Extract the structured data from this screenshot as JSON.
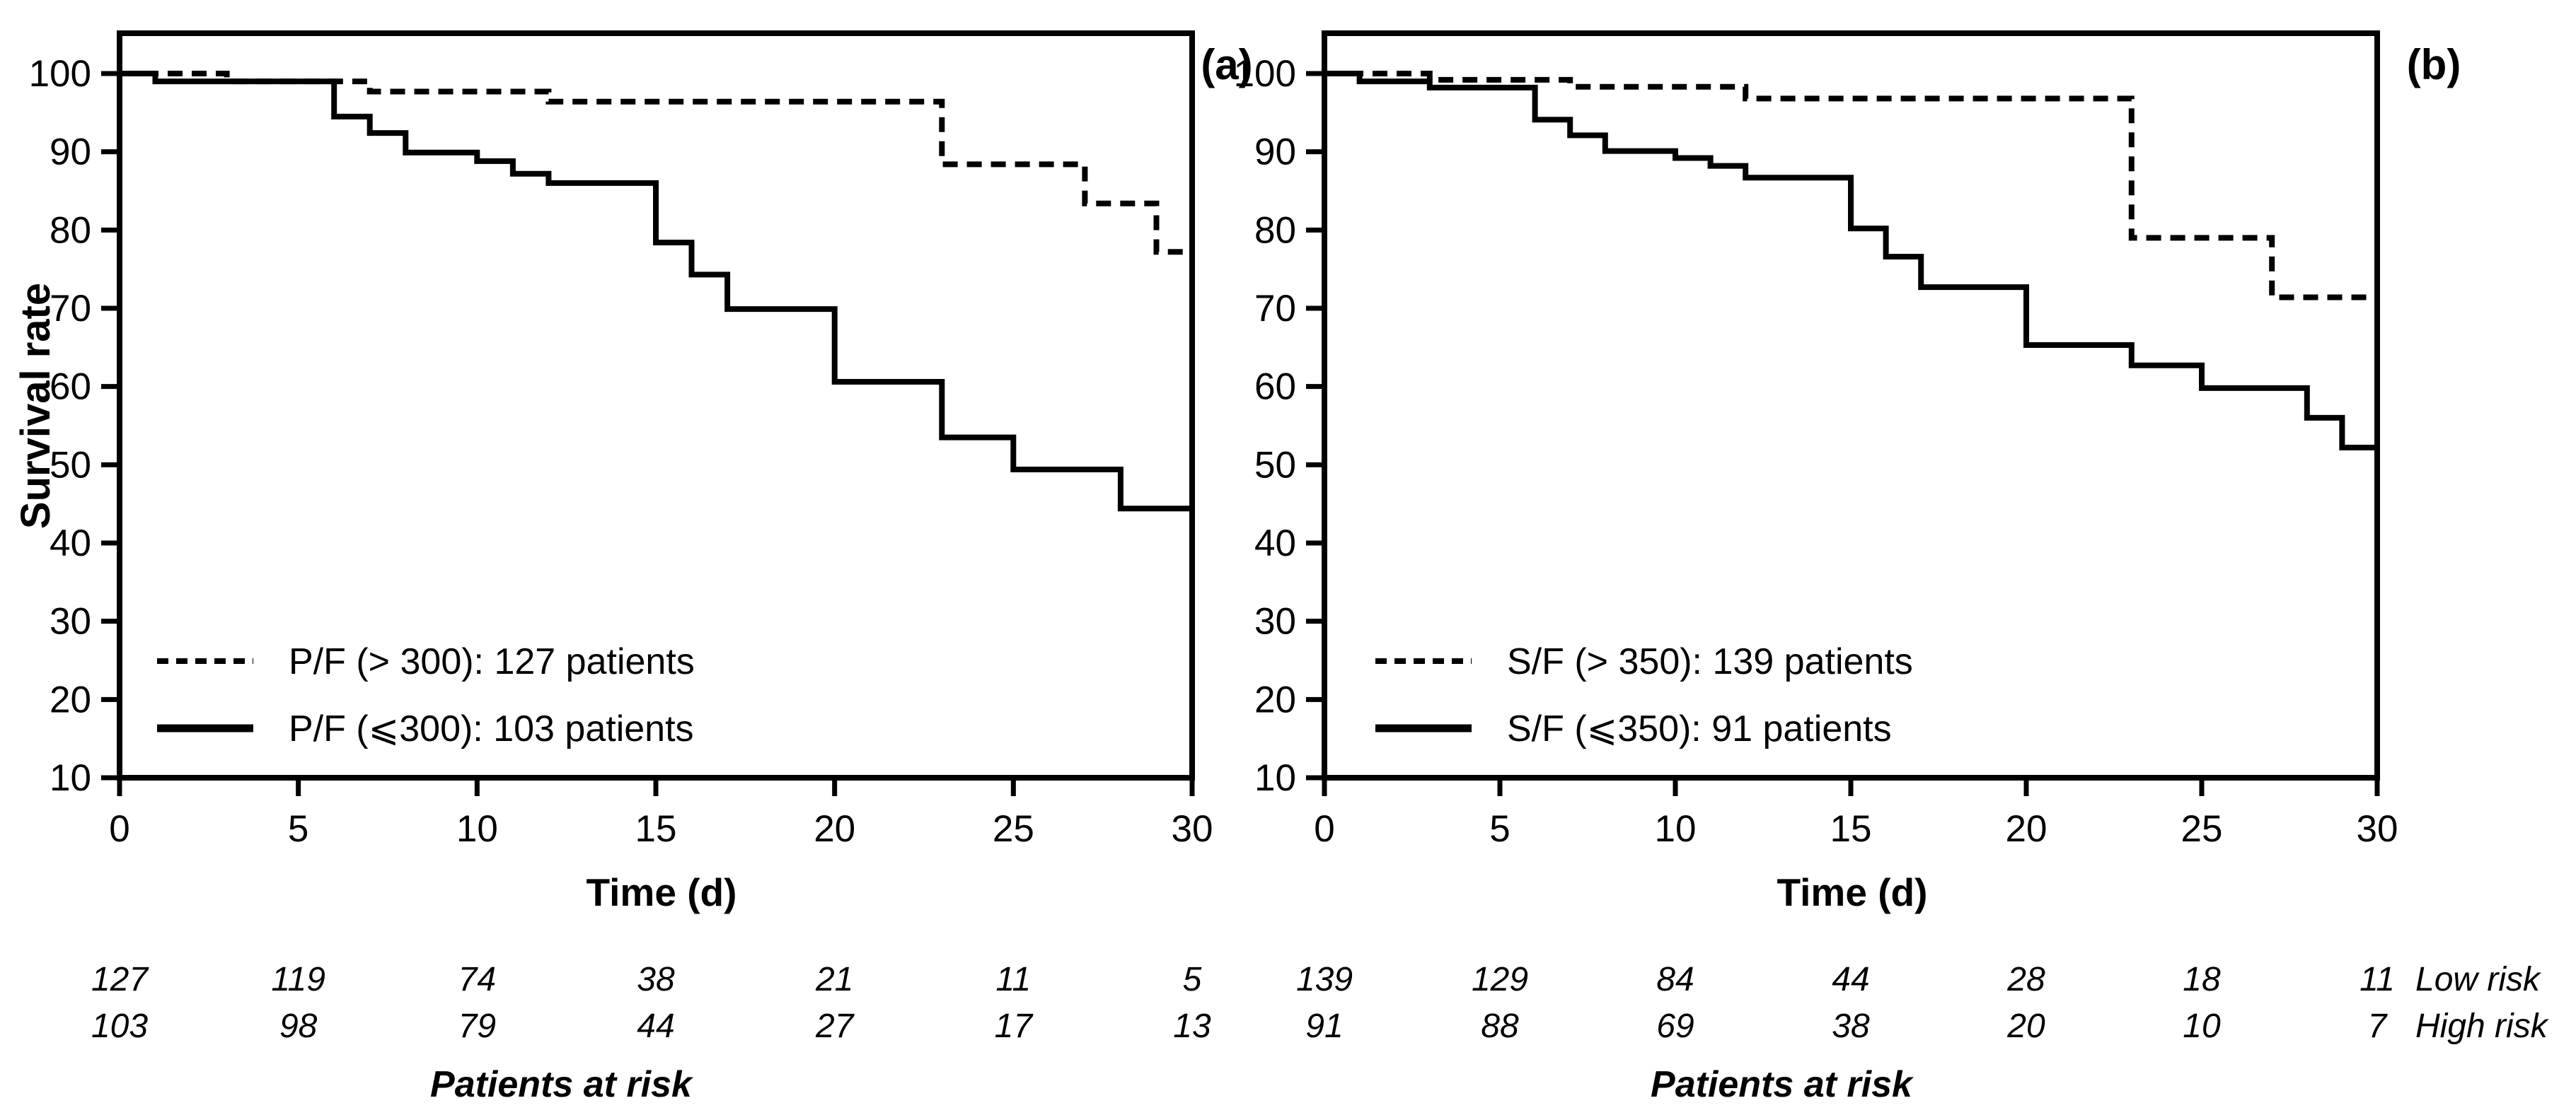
{
  "figure": {
    "background": "#ffffff",
    "ink_color": "#000000",
    "description": "Kaplan-Meier survival curves, two panels"
  },
  "chart_data": [
    {
      "type": "line",
      "subtype": "kaplan-meier-step",
      "panel_label": "(a)",
      "xlabel": "Time (d)",
      "ylabel": "Survival rate",
      "xlim": [
        0,
        30
      ],
      "ylim": [
        10,
        105
      ],
      "xticks": [
        0,
        5,
        10,
        15,
        20,
        25,
        30
      ],
      "yticks": [
        100,
        90,
        80,
        70,
        60,
        50,
        40,
        30,
        20,
        10
      ],
      "grid": false,
      "legend_position": "inside-lower-left",
      "series": [
        {
          "name": "P/F (> 300): 127 patients",
          "line_style": "dashed",
          "color": "#000000",
          "risk_group": "Low risk",
          "steps": [
            [
              0,
              100
            ],
            [
              3,
              99
            ],
            [
              7,
              97.7
            ],
            [
              12,
              96.4
            ],
            [
              23,
              88.4
            ],
            [
              27,
              83.4
            ],
            [
              29,
              77.2
            ],
            [
              30,
              77.2
            ]
          ]
        },
        {
          "name": "P/F (⩽300): 103 patients",
          "line_style": "solid",
          "color": "#000000",
          "risk_group": "High risk",
          "steps": [
            [
              0,
              100
            ],
            [
              1,
              99
            ],
            [
              6,
              94.5
            ],
            [
              7,
              92.4
            ],
            [
              8,
              89.9
            ],
            [
              10,
              88.8
            ],
            [
              11,
              87.2
            ],
            [
              12,
              86.0
            ],
            [
              15,
              78.4
            ],
            [
              16,
              74.3
            ],
            [
              17,
              69.9
            ],
            [
              20,
              60.6
            ],
            [
              23,
              53.5
            ],
            [
              25,
              49.4
            ],
            [
              28,
              44.4
            ],
            [
              30,
              44.4
            ]
          ]
        }
      ],
      "patients_at_risk": {
        "times": [
          0,
          5,
          10,
          15,
          20,
          25,
          30
        ],
        "rows": [
          {
            "label": "",
            "values": [
              127,
              119,
              74,
              38,
              21,
              11,
              5
            ]
          },
          {
            "label": "",
            "values": [
              103,
              98,
              79,
              44,
              27,
              17,
              13
            ]
          }
        ],
        "footer": "Patients at risk"
      }
    },
    {
      "type": "line",
      "subtype": "kaplan-meier-step",
      "panel_label": "(b)",
      "xlabel": "Time (d)",
      "ylabel": "",
      "xlim": [
        0,
        30
      ],
      "ylim": [
        10,
        105
      ],
      "xticks": [
        0,
        5,
        10,
        15,
        20,
        25,
        30
      ],
      "yticks": [
        100,
        90,
        80,
        70,
        60,
        50,
        40,
        30,
        20,
        10
      ],
      "grid": false,
      "legend_position": "inside-lower-left",
      "series": [
        {
          "name": "S/F (> 350): 139 patients",
          "line_style": "dashed",
          "color": "#000000",
          "risk_group": "Low risk",
          "steps": [
            [
              0,
              100
            ],
            [
              3,
              99.2
            ],
            [
              7,
              98.3
            ],
            [
              12,
              96.8
            ],
            [
              23,
              79.0
            ],
            [
              27,
              71.4
            ],
            [
              30,
              71.4
            ]
          ]
        },
        {
          "name": "S/F (⩽350): 91 patients",
          "line_style": "solid",
          "color": "#000000",
          "risk_group": "High risk",
          "steps": [
            [
              0,
              100
            ],
            [
              1,
              99
            ],
            [
              3,
              98.2
            ],
            [
              6,
              94.1
            ],
            [
              7,
              92.1
            ],
            [
              8,
              90.1
            ],
            [
              10,
              89.2
            ],
            [
              11,
              88.2
            ],
            [
              12,
              86.7
            ],
            [
              15,
              80.2
            ],
            [
              16,
              76.6
            ],
            [
              17,
              72.7
            ],
            [
              20,
              65.3
            ],
            [
              23,
              62.7
            ],
            [
              25,
              59.8
            ],
            [
              28,
              56.0
            ],
            [
              29,
              52.2
            ],
            [
              30,
              52.2
            ]
          ]
        }
      ],
      "patients_at_risk": {
        "times": [
          0,
          5,
          10,
          15,
          20,
          25,
          30
        ],
        "rows": [
          {
            "label": "Low risk",
            "values": [
              139,
              129,
              84,
              44,
              28,
              18,
              11
            ]
          },
          {
            "label": "High risk",
            "values": [
              91,
              88,
              69,
              38,
              20,
              10,
              7
            ]
          }
        ],
        "footer": "Patients at risk"
      }
    }
  ]
}
